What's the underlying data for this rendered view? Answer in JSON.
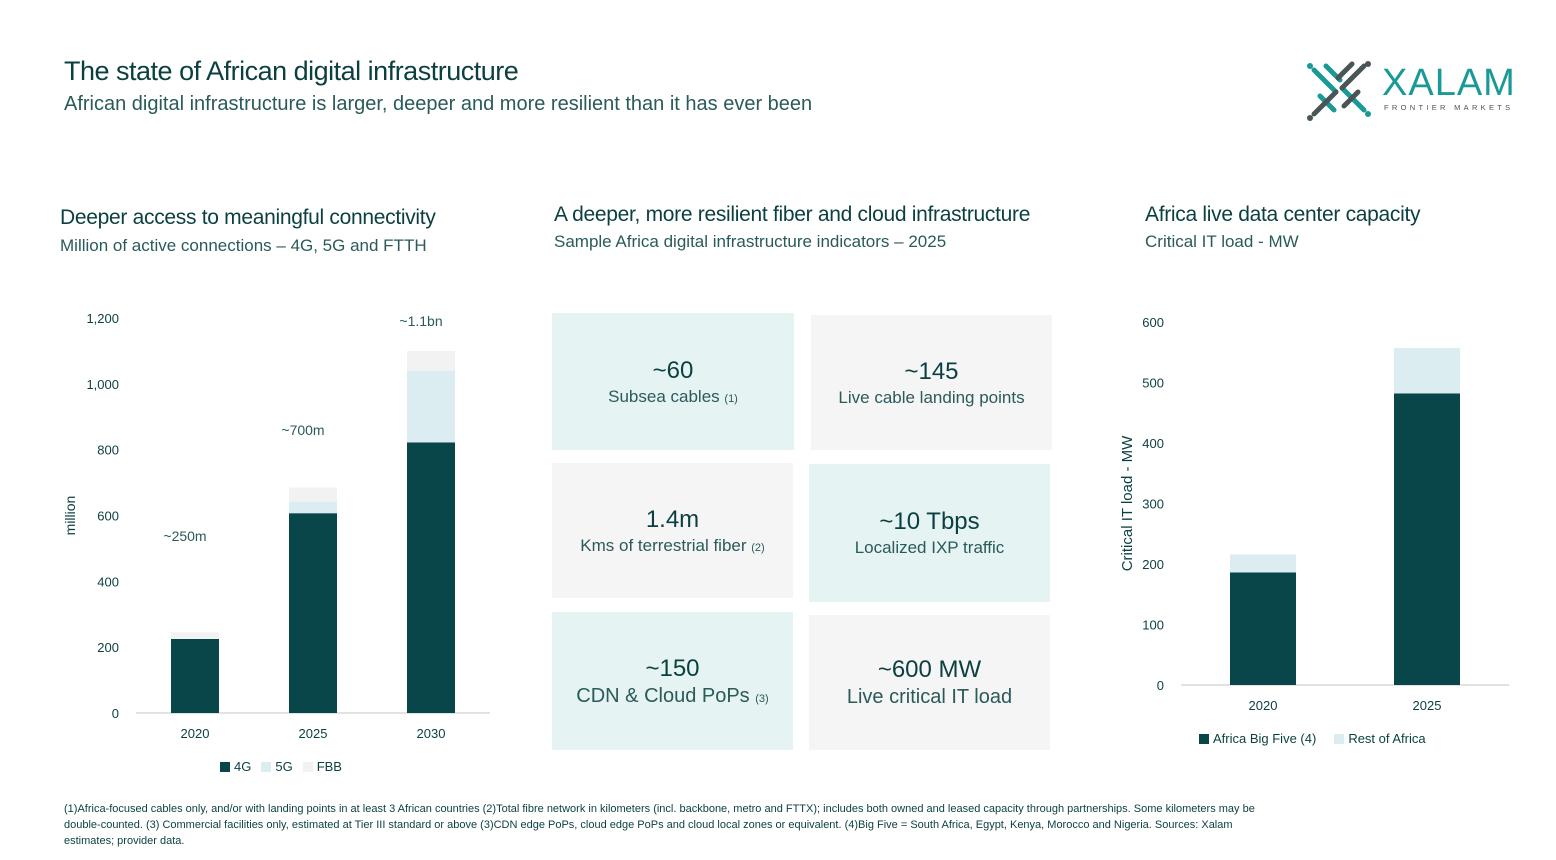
{
  "header": {
    "title": "The state of African digital infrastructure",
    "subtitle": "African digital infrastructure is larger, deeper and more resilient than it has ever been"
  },
  "logo": {
    "name": "XALAM",
    "tagline": "FRONTIER MARKETS",
    "colors": {
      "teal": "#1a9a96",
      "gray": "#4a5558"
    }
  },
  "colors": {
    "dark": "#08464a",
    "light_blue": "#dcedf2",
    "light_gray": "#f2f2f2"
  },
  "sections": {
    "left": {
      "title": "Deeper access to meaningful connectivity",
      "subtitle": "Million of active connections – 4G, 5G and FTTH"
    },
    "middle": {
      "title": "A deeper, more resilient fiber and cloud infrastructure",
      "subtitle": "Sample Africa digital infrastructure indicators – 2025",
      "tiles": [
        {
          "value": "~60",
          "label": "Subsea cables",
          "note": "(1)"
        },
        {
          "value": "~145",
          "label": "Live cable landing points",
          "note": ""
        },
        {
          "value": "1.4m",
          "label": "Kms of terrestrial fiber",
          "note": "(2)"
        },
        {
          "value": "~10 Tbps",
          "label": "Localized IXP traffic",
          "note": ""
        },
        {
          "value": "~150",
          "label": "CDN & Cloud PoPs",
          "note": "(3)"
        },
        {
          "value": "~600 MW",
          "label": "Live critical IT load",
          "note": ""
        }
      ]
    },
    "right": {
      "title": "Africa live data center capacity",
      "subtitle": "Critical IT load - MW"
    }
  },
  "chart_data": [
    {
      "type": "bar",
      "stacked": true,
      "categories": [
        "2020",
        "2025",
        "2030"
      ],
      "series": [
        {
          "name": "4G",
          "values": [
            225,
            607,
            822
          ]
        },
        {
          "name": "5G",
          "values": [
            0,
            35,
            218
          ]
        },
        {
          "name": "FBB",
          "values": [
            20,
            43,
            60
          ]
        }
      ],
      "annotations": [
        "~250m",
        "~700m",
        "~1.1bn"
      ],
      "ylabel": "million",
      "ylim": [
        0,
        1200
      ],
      "yticks": [
        "0",
        "200",
        "400",
        "600",
        "800",
        "1,000",
        "1,200"
      ],
      "ytick_values": [
        0,
        200,
        400,
        600,
        800,
        1000,
        1200
      ],
      "grid": false,
      "legend": "bottom"
    },
    {
      "type": "bar",
      "stacked": true,
      "categories": [
        "2020",
        "2025"
      ],
      "series": [
        {
          "name": "Africa Big Five (4)",
          "values": [
            186,
            482
          ]
        },
        {
          "name": "Rest of Africa",
          "values": [
            30,
            75
          ]
        }
      ],
      "ylabel": "Critical IT load - MW",
      "ylim": [
        0,
        600
      ],
      "yticks": [
        "0",
        "100",
        "200",
        "300",
        "400",
        "500",
        "600"
      ],
      "ytick_values": [
        0,
        100,
        200,
        300,
        400,
        500,
        600
      ],
      "grid": false,
      "legend": "bottom"
    }
  ],
  "footnote": "(1)Africa-focused cables only, and/or with landing points in at least 3 African countries (2)Total fibre network in kilometers (incl. backbone, metro and FTTX); includes both owned and leased capacity through partnerships. Some kilometers may be double-counted. (3) Commercial facilities only, estimated at Tier III standard or above (3)CDN edge PoPs, cloud edge PoPs and cloud local zones or equivalent. (4)Big Five = South Africa, Egypt, Kenya, Morocco and Nigeria. Sources: Xalam estimates; provider data."
}
